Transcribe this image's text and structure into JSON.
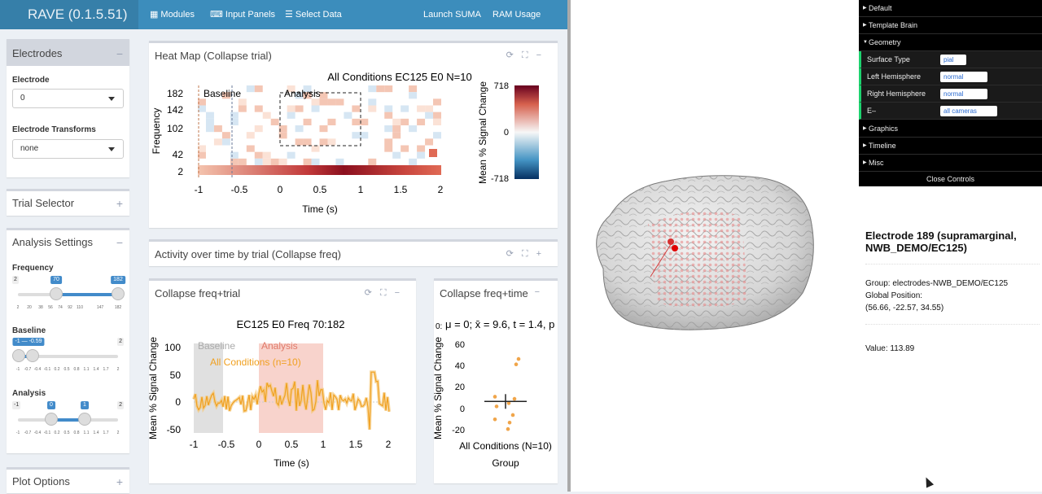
{
  "app": {
    "title": "RAVE (0.1.5.51)"
  },
  "nav": {
    "modules": "Modules",
    "input_panels": "Input Panels",
    "select_data": "Select Data",
    "launch_suma": "Launch SUMA",
    "ram_usage": "RAM Usage"
  },
  "sidebar": {
    "electrodes": {
      "title": "Electrodes",
      "electrode_label": "Electrode",
      "electrode_value": "0",
      "transforms_label": "Electrode Transforms",
      "transforms_value": "none"
    },
    "trial_selector": {
      "title": "Trial Selector"
    },
    "analysis_settings": {
      "title": "Analysis Settings",
      "frequency": {
        "label": "Frequency",
        "min": "2",
        "max": "182",
        "from": "70",
        "to": "182",
        "ticks": [
          "2",
          "20",
          "38",
          "56",
          "74",
          "92",
          "110",
          "147",
          "182"
        ]
      },
      "baseline": {
        "label": "Baseline",
        "min": "-1",
        "max": "2",
        "current": "-1 — -0.59",
        "ticks": [
          "-1",
          "-0.7",
          "-0.4",
          "-0.1",
          "0.2",
          "0.5",
          "0.8",
          "1.1",
          "1.4",
          "1.7",
          "2"
        ]
      },
      "analysis": {
        "label": "Analysis",
        "min": "-1",
        "max": "2",
        "from": "0",
        "to": "1",
        "ticks": [
          "-1",
          "-0.7",
          "-0.4",
          "-0.1",
          "0.2",
          "0.5",
          "0.8",
          "1.1",
          "1.4",
          "1.7",
          "2"
        ]
      }
    },
    "plot_options": {
      "title": "Plot Options"
    }
  },
  "panels": {
    "heatmap": {
      "title": "Heat Map (Collapse trial)"
    },
    "activity": {
      "title": "Activity over time by trial (Collapse freq)"
    },
    "collapse_ft": {
      "title": "Collapse freq+trial"
    },
    "collapse_time": {
      "title": "Collapse freq+time"
    }
  },
  "chart_data": [
    {
      "type": "heatmap",
      "title": "All Conditions EC125 E0 N=10",
      "xlabel": "Time (s)",
      "ylabel": "Frequency",
      "xticks": [
        "-1",
        "-0.5",
        "0",
        "0.5",
        "1",
        "1.5",
        "2"
      ],
      "yticks": [
        "2",
        "42",
        "102",
        "142",
        "182"
      ],
      "xlim": [
        -1,
        2
      ],
      "ylim": [
        2,
        182
      ],
      "windows": [
        {
          "label": "Baseline",
          "x": [
            -1,
            -0.59
          ]
        },
        {
          "label": "Analysis",
          "x": [
            0,
            1
          ],
          "y": [
            70,
            182
          ]
        }
      ],
      "colorbar": {
        "label": "Mean % Signal Change",
        "ticks": [
          "718",
          "0",
          "-718"
        ],
        "range": [
          -718,
          718
        ]
      }
    },
    {
      "type": "line",
      "title": "EC125 E0 Freq 70:182",
      "xlabel": "Time (s)",
      "ylabel": "Mean % Signal Change",
      "xticks": [
        "-1",
        "-0.5",
        "0",
        "0.5",
        "1",
        "1.5",
        "2"
      ],
      "yticks": [
        "100",
        "50",
        "0",
        "-50"
      ],
      "xlim": [
        -1,
        2
      ],
      "ylim": [
        -50,
        100
      ],
      "windows": [
        {
          "label": "Baseline",
          "x": [
            -1,
            -0.59
          ]
        },
        {
          "label": "Analysis",
          "x": [
            0,
            1
          ]
        }
      ],
      "series": [
        {
          "name": "All Conditions (n=10)"
        }
      ]
    },
    {
      "type": "scatter",
      "title": "μ = 0; x̄ = 9.6, t = 1.4, p",
      "title_prefix": "0:",
      "xlabel": "Group",
      "ylabel": "Mean % Signal Change",
      "category": "All Conditions (N=10)",
      "yticks": [
        "60",
        "40",
        "20",
        "0",
        "-20"
      ],
      "ylim": [
        -20,
        60
      ],
      "points": [
        49,
        44,
        14,
        12,
        8,
        5,
        -3,
        -7,
        -10,
        -16
      ],
      "mean": 9.6
    }
  ],
  "controls": {
    "default": "Default",
    "template_brain": "Template Brain",
    "geometry": "Geometry",
    "surface_type_label": "Surface Type",
    "surface_type": "pial",
    "left_hemisphere_label": "Left Hemisphere",
    "left_hemisphere": "normal",
    "right_hemisphere_label": "Right Hemisphere",
    "right_hemisphere": "normal",
    "e_label": "E–",
    "e_value": "all cameras",
    "graphics": "Graphics",
    "timeline": "Timeline",
    "misc": "Misc",
    "close": "Close Controls"
  },
  "electrode_info": {
    "title": "Electrode 189 (supramarginal, NWB_DEMO/EC125)",
    "group": "Group: electrodes-NWB_DEMO/EC125",
    "global_position_label": "Global Position:",
    "global_position": "(56.66, -22.57, 34.55)",
    "value": "Value: 113.89"
  }
}
